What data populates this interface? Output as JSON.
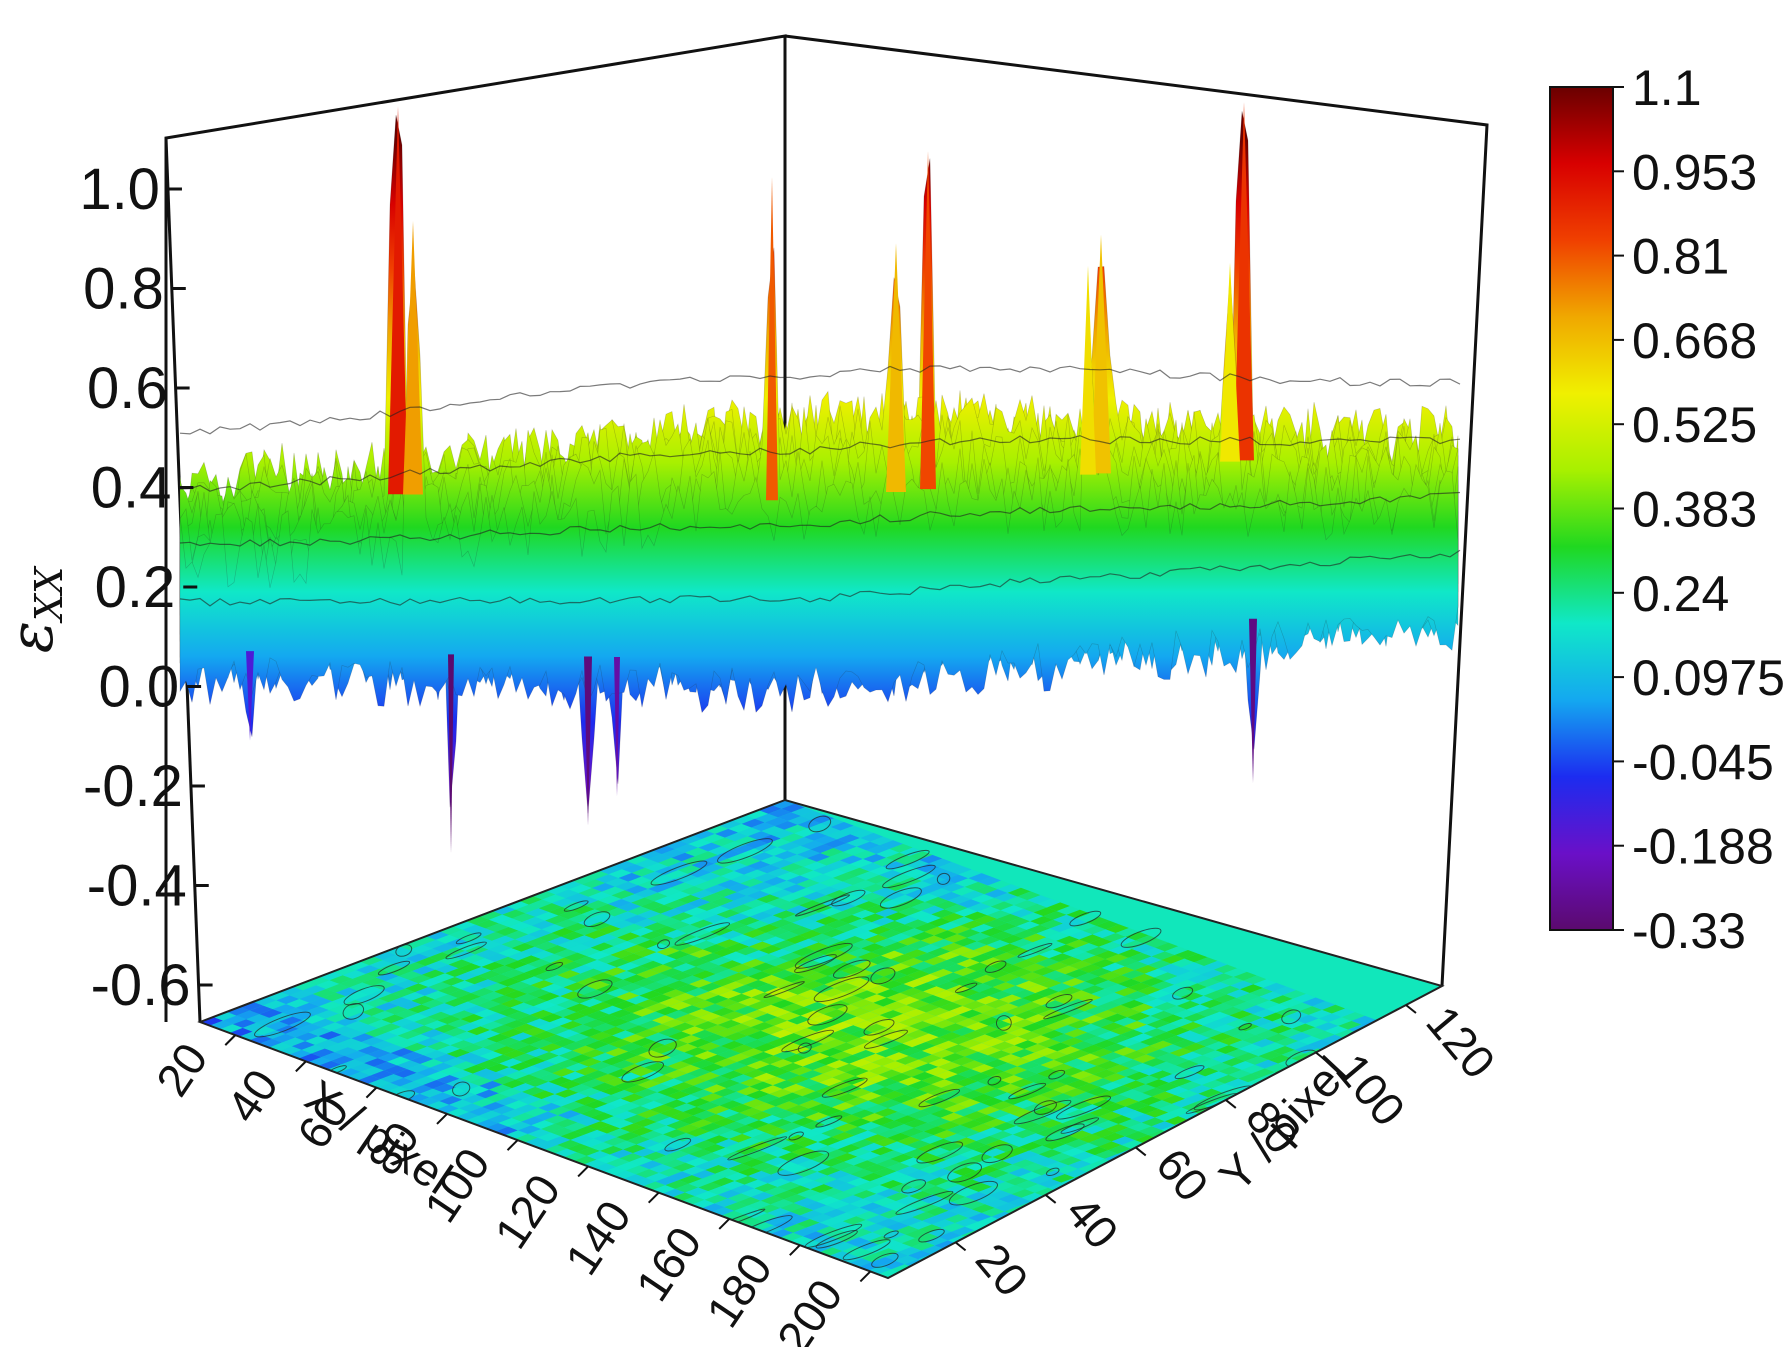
{
  "chart_data": {
    "type": "surface3d",
    "z_axis": {
      "label_symbol": "ε",
      "label_subscript": "XX",
      "ticks": [
        "1.0",
        "0.8",
        "0.6",
        "0.4",
        "0.2",
        "0.0",
        "-0.2",
        "-0.4",
        "-0.6"
      ],
      "range": [
        -0.65,
        1.1
      ]
    },
    "x_axis": {
      "label": "X / pixel",
      "ticks": [
        "20",
        "40",
        "60",
        "80",
        "100",
        "120",
        "140",
        "160",
        "180",
        "200"
      ],
      "range": [
        10,
        205
      ]
    },
    "y_axis": {
      "label": "Y / pixel",
      "ticks": [
        "20",
        "40",
        "60",
        "80",
        "100",
        "120"
      ],
      "range": [
        5,
        128
      ]
    },
    "colorbar": {
      "labels": [
        "1.1",
        "0.953",
        "0.81",
        "0.668",
        "0.525",
        "0.383",
        "0.24",
        "0.0975",
        "-0.045",
        "-0.188",
        "-0.33"
      ],
      "min": -0.33,
      "max": 1.1,
      "colormap": [
        "#5b0a6e",
        "#6a10c8",
        "#1c2cf0",
        "#14a8f0",
        "#10e8c8",
        "#20d820",
        "#a8f000",
        "#f0f000",
        "#f0a800",
        "#f04000",
        "#d80000",
        "#6a0000"
      ]
    },
    "surface_summary": {
      "mean_strain": 0.2,
      "peak_values": [
        1.08,
        1.02,
        0.98,
        0.85,
        0.8,
        0.78
      ],
      "min_values": [
        -0.42,
        -0.36,
        -0.3,
        -0.25
      ]
    },
    "grid": true,
    "base_projection": "filled-contour"
  }
}
